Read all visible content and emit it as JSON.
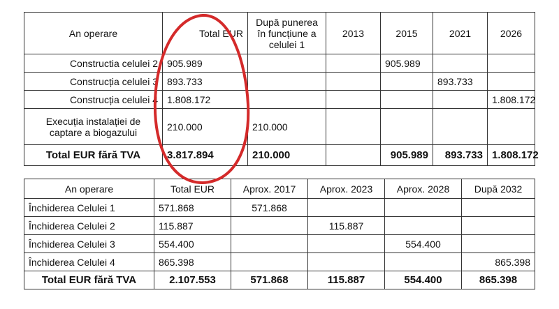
{
  "table1": {
    "header": {
      "c0": "An operare",
      "c1": "Total EUR",
      "c2": "După punerea în funcțiune a celulei 1",
      "c3": "2013",
      "c4": "2015",
      "c5": "2021",
      "c6": "2026"
    },
    "rows": [
      {
        "label": "Constructia celulei 2",
        "total": "905.989",
        "after": "",
        "y2013": "",
        "y2015": "905.989",
        "y2021": "",
        "y2026": ""
      },
      {
        "label": "Construcția celulei 3",
        "total": "893.733",
        "after": "",
        "y2013": "",
        "y2015": "",
        "y2021": "893.733",
        "y2026": ""
      },
      {
        "label": "Construcția celulei 4",
        "total": "1.808.172",
        "after": "",
        "y2013": "",
        "y2015": "",
        "y2021": "",
        "y2026": "1.808.172"
      },
      {
        "label": "Execuția instalației de captare a biogazului",
        "total": "210.000",
        "after": "210.000",
        "y2013": "",
        "y2015": "",
        "y2021": "",
        "y2026": ""
      }
    ],
    "total": {
      "label": "Total EUR fără TVA",
      "total": "3.817.894",
      "after": "210.000",
      "y2013": "",
      "y2015": "905.989",
      "y2021": "893.733",
      "y2026": "1.808.172"
    }
  },
  "table2": {
    "header": {
      "c0": "An operare",
      "c1": "Total EUR",
      "c2": "Aprox. 2017",
      "c3": "Aprox. 2023",
      "c4": "Aprox. 2028",
      "c5": "După 2032"
    },
    "rows": [
      {
        "label": "Închiderea Celulei 1",
        "total": "571.868",
        "a2017": "571.868",
        "a2023": "",
        "a2028": "",
        "d2032": ""
      },
      {
        "label": "Închiderea Celulei 2",
        "total": "115.887",
        "a2017": "",
        "a2023": "115.887",
        "a2028": "",
        "d2032": ""
      },
      {
        "label": "Închiderea Celulei 3",
        "total": "554.400",
        "a2017": "",
        "a2023": "",
        "a2028": "554.400",
        "d2032": ""
      },
      {
        "label": "Închiderea Celulei 4",
        "total": "865.398",
        "a2017": "",
        "a2023": "",
        "a2028": "",
        "d2032": "865.398"
      }
    ],
    "total": {
      "label": "Total EUR fără TVA",
      "total": "2.107.553",
      "a2017": "571.868",
      "a2023": "115.887",
      "a2028": "554.400",
      "d2032": "865.398"
    }
  },
  "annotation": {
    "color": "#d42a2a"
  }
}
